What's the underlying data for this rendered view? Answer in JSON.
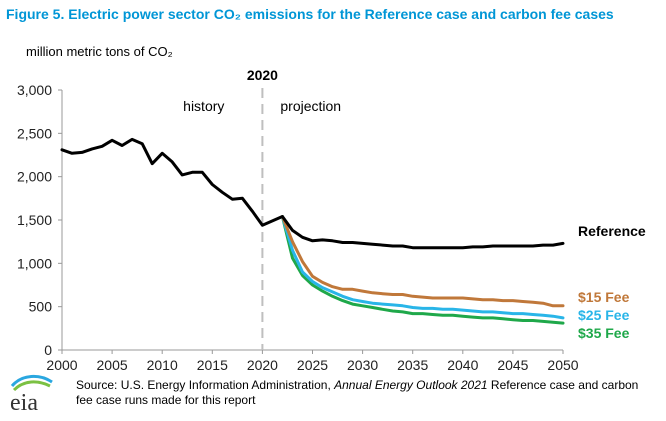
{
  "page": {
    "title": "Figure 5. Electric power sector CO₂ emissions for the Reference case and carbon fee cases",
    "source_prefix": "Source: U.S. Energy Information Administration, ",
    "source_italic": "Annual Energy Outlook 2021",
    "source_suffix": " Reference case and carbon fee case runs made for this report",
    "logo_text": "eia"
  },
  "colors": {
    "title": "#0096d6",
    "reference": "#000000",
    "fee15": "#c0783a",
    "fee25": "#29b5e8",
    "fee35": "#1fa84a",
    "divider": "#bfbfbf"
  },
  "chart_data": {
    "type": "line",
    "title": "Figure 5. Electric power sector CO₂ emissions for the Reference case and carbon fee cases",
    "ylabel": "million metric tons of CO₂",
    "xlabel": "",
    "xlim": [
      2000,
      2050
    ],
    "ylim": [
      0,
      3000
    ],
    "xticks": [
      2000,
      2005,
      2010,
      2015,
      2020,
      2025,
      2030,
      2035,
      2040,
      2045,
      2050
    ],
    "yticks": [
      "0",
      "500",
      "1,000",
      "1,500",
      "2,000",
      "2,500",
      "3,000"
    ],
    "ytick_values": [
      0,
      500,
      1000,
      1500,
      2000,
      2500,
      3000
    ],
    "grid": false,
    "divider_year": 2020,
    "divider_label": "2020",
    "region_labels": {
      "history": "history",
      "projection": "projection"
    },
    "legend": "inline-right",
    "series": [
      {
        "name": "Reference",
        "color_key": "reference",
        "x": [
          2000,
          2001,
          2002,
          2003,
          2004,
          2005,
          2006,
          2007,
          2008,
          2009,
          2010,
          2011,
          2012,
          2013,
          2014,
          2015,
          2016,
          2017,
          2018,
          2019,
          2020,
          2021,
          2022,
          2023,
          2024,
          2025,
          2026,
          2027,
          2028,
          2029,
          2030,
          2031,
          2032,
          2033,
          2034,
          2035,
          2036,
          2037,
          2038,
          2039,
          2040,
          2041,
          2042,
          2043,
          2044,
          2045,
          2046,
          2047,
          2048,
          2049,
          2050
        ],
        "y": [
          2310,
          2270,
          2280,
          2320,
          2350,
          2420,
          2360,
          2430,
          2380,
          2150,
          2270,
          2170,
          2020,
          2050,
          2050,
          1910,
          1820,
          1740,
          1750,
          1600,
          1440,
          1490,
          1540,
          1380,
          1300,
          1260,
          1270,
          1260,
          1240,
          1240,
          1230,
          1220,
          1210,
          1200,
          1200,
          1180,
          1180,
          1180,
          1180,
          1180,
          1180,
          1190,
          1190,
          1200,
          1200,
          1200,
          1200,
          1200,
          1210,
          1210,
          1230
        ]
      },
      {
        "name": "$15 Fee",
        "color_key": "fee15",
        "x": [
          2022,
          2023,
          2024,
          2025,
          2026,
          2027,
          2028,
          2029,
          2030,
          2031,
          2032,
          2033,
          2034,
          2035,
          2036,
          2037,
          2038,
          2039,
          2040,
          2041,
          2042,
          2043,
          2044,
          2045,
          2046,
          2047,
          2048,
          2049,
          2050
        ],
        "y": [
          1540,
          1250,
          1020,
          850,
          780,
          730,
          700,
          700,
          680,
          660,
          650,
          640,
          640,
          620,
          610,
          600,
          600,
          600,
          600,
          590,
          580,
          580,
          570,
          570,
          560,
          550,
          540,
          510,
          510
        ]
      },
      {
        "name": "$25 Fee",
        "color_key": "fee25",
        "x": [
          2022,
          2023,
          2024,
          2025,
          2026,
          2027,
          2028,
          2029,
          2030,
          2031,
          2032,
          2033,
          2034,
          2035,
          2036,
          2037,
          2038,
          2039,
          2040,
          2041,
          2042,
          2043,
          2044,
          2045,
          2046,
          2047,
          2048,
          2049,
          2050
        ],
        "y": [
          1540,
          1150,
          900,
          790,
          720,
          670,
          620,
          580,
          560,
          540,
          530,
          520,
          510,
          490,
          480,
          480,
          470,
          470,
          460,
          450,
          440,
          440,
          430,
          420,
          420,
          410,
          400,
          390,
          370
        ]
      },
      {
        "name": "$35 Fee",
        "color_key": "fee35",
        "x": [
          2022,
          2023,
          2024,
          2025,
          2026,
          2027,
          2028,
          2029,
          2030,
          2031,
          2032,
          2033,
          2034,
          2035,
          2036,
          2037,
          2038,
          2039,
          2040,
          2041,
          2042,
          2043,
          2044,
          2045,
          2046,
          2047,
          2048,
          2049,
          2050
        ],
        "y": [
          1540,
          1060,
          860,
          750,
          680,
          620,
          570,
          530,
          510,
          490,
          470,
          450,
          440,
          420,
          420,
          410,
          400,
          400,
          390,
          380,
          370,
          370,
          360,
          350,
          340,
          340,
          330,
          320,
          310
        ]
      }
    ]
  }
}
